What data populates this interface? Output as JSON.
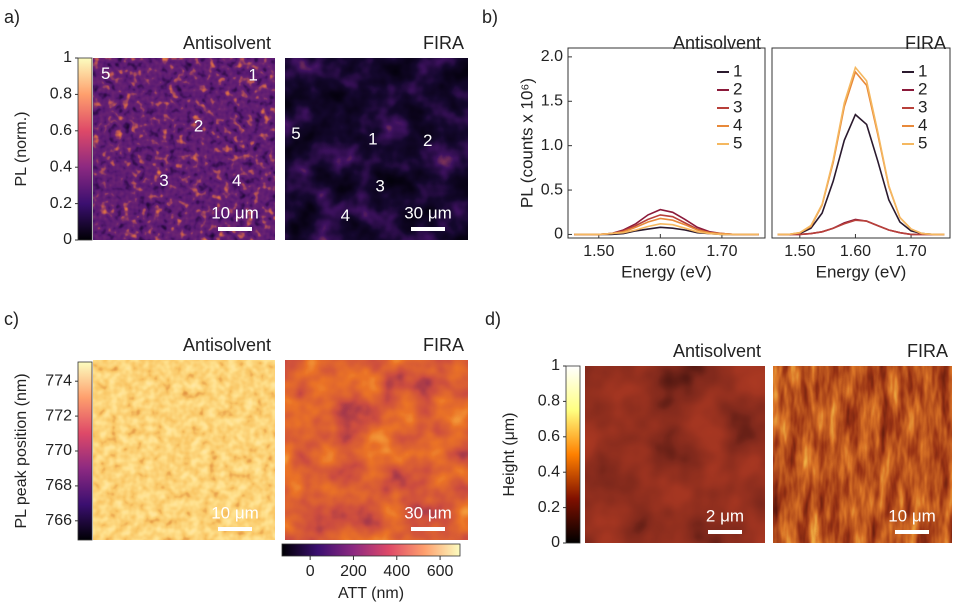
{
  "panel_labels": [
    "a)",
    "b)",
    "c)",
    "d)"
  ],
  "chart_data": [
    {
      "type": "colorbar",
      "orientation": "vertical",
      "label": "PL (norm.)",
      "ylim": [
        0,
        1
      ],
      "yticks": [
        0,
        0.2,
        0.4,
        0.6,
        0.8,
        1
      ],
      "colors": [
        "#000004",
        "#3b0f70",
        "#8c2981",
        "#de4968",
        "#fe9f6d",
        "#fcfdbf"
      ]
    },
    {
      "type": "image",
      "title": "Antisolvent",
      "scale_bar": "10 μm",
      "annotations": [
        "5",
        "1",
        "2",
        "3",
        "4"
      ]
    },
    {
      "type": "image",
      "title": "FIRA",
      "scale_bar": "30 μm",
      "annotations": [
        "5",
        "1",
        "2",
        "3",
        "4"
      ]
    },
    {
      "type": "line",
      "title": "Antisolvent",
      "xlabel": "Energy (eV)",
      "ylabel": "PL (counts  x 10⁶)",
      "legend": "upper right",
      "x": [
        1.46,
        1.48,
        1.5,
        1.52,
        1.54,
        1.56,
        1.58,
        1.6,
        1.62,
        1.64,
        1.66,
        1.68,
        1.7,
        1.72,
        1.74,
        1.76
      ],
      "xlim": [
        1.45,
        1.77
      ],
      "ylim": [
        -0.04,
        2.1
      ],
      "xticks": [
        {
          "value": 1.5,
          "label": "1.50"
        },
        {
          "value": 1.6,
          "label": "1.60"
        },
        {
          "value": 1.7,
          "label": "1.70"
        }
      ],
      "yticks": [
        0,
        0.5,
        {
          "value": 1,
          "label": "1.0"
        },
        1.5,
        {
          "value": 2,
          "label": "2.0"
        }
      ],
      "series": [
        {
          "name": "1",
          "color": "#2b1a2e",
          "values": [
            0,
            0,
            0,
            0,
            0.01,
            0.04,
            0.06,
            0.08,
            0.07,
            0.05,
            0.02,
            0.01,
            0,
            0,
            0,
            0
          ]
        },
        {
          "name": "2",
          "color": "#8b1a3a",
          "values": [
            0,
            0,
            0,
            0.01,
            0.05,
            0.12,
            0.22,
            0.28,
            0.25,
            0.17,
            0.08,
            0.03,
            0.01,
            0,
            0,
            0
          ]
        },
        {
          "name": "3",
          "color": "#b8403a",
          "values": [
            0,
            0,
            0,
            0.01,
            0.04,
            0.1,
            0.17,
            0.22,
            0.2,
            0.13,
            0.06,
            0.02,
            0.01,
            0,
            0,
            0
          ]
        },
        {
          "name": "4",
          "color": "#e8893a",
          "values": [
            0,
            0,
            0,
            0.01,
            0.03,
            0.08,
            0.14,
            0.18,
            0.16,
            0.11,
            0.05,
            0.02,
            0.01,
            0,
            0,
            0
          ]
        },
        {
          "name": "5",
          "color": "#f5b860",
          "values": [
            0,
            0,
            0,
            0.01,
            0.02,
            0.05,
            0.09,
            0.12,
            0.11,
            0.07,
            0.03,
            0.01,
            0,
            0,
            0,
            0
          ]
        }
      ]
    },
    {
      "type": "line",
      "title": "FIRA",
      "xlabel": "Energy (eV)",
      "legend": "upper right",
      "x": [
        1.46,
        1.48,
        1.5,
        1.52,
        1.54,
        1.56,
        1.58,
        1.6,
        1.62,
        1.64,
        1.66,
        1.68,
        1.7,
        1.72,
        1.74,
        1.76
      ],
      "xlim": [
        1.45,
        1.77
      ],
      "ylim": [
        -0.04,
        2.1
      ],
      "xticks": [
        {
          "value": 1.5,
          "label": "1.50"
        },
        {
          "value": 1.6,
          "label": "1.60"
        },
        {
          "value": 1.7,
          "label": "1.70"
        }
      ],
      "series": [
        {
          "name": "1",
          "color": "#2b1a2e",
          "values": [
            0,
            0,
            0.01,
            0.07,
            0.24,
            0.6,
            1.06,
            1.35,
            1.24,
            0.83,
            0.39,
            0.14,
            0.04,
            0.01,
            0,
            0
          ]
        },
        {
          "name": "2",
          "color": "#8b1a3a",
          "values": [
            0,
            0,
            0,
            0.01,
            0.03,
            0.07,
            0.13,
            0.17,
            0.15,
            0.1,
            0.05,
            0.02,
            0,
            0,
            0,
            0
          ]
        },
        {
          "name": "3",
          "color": "#b8403a",
          "values": [
            0,
            0,
            0,
            0.01,
            0.03,
            0.07,
            0.12,
            0.16,
            0.15,
            0.1,
            0.05,
            0.02,
            0,
            0,
            0,
            0
          ]
        },
        {
          "name": "4",
          "color": "#e8893a",
          "values": [
            0,
            0,
            0.02,
            0.09,
            0.33,
            0.81,
            1.44,
            1.83,
            1.68,
            1.13,
            0.54,
            0.19,
            0.06,
            0.01,
            0,
            0
          ]
        },
        {
          "name": "5",
          "color": "#f5b860",
          "values": [
            0,
            0,
            0.02,
            0.1,
            0.34,
            0.84,
            1.48,
            1.88,
            1.73,
            1.16,
            0.55,
            0.19,
            0.06,
            0.01,
            0,
            0
          ]
        }
      ]
    },
    {
      "type": "colorbar",
      "orientation": "vertical",
      "label": "PL peak position (nm)",
      "ylim": [
        764.9,
        775.1
      ],
      "yticks": [
        766,
        768,
        770,
        772,
        774
      ],
      "colors": [
        "#000004",
        "#3b0f70",
        "#8c2981",
        "#de4968",
        "#fe9f6d",
        "#fcfdbf"
      ]
    },
    {
      "type": "image",
      "title": "Antisolvent",
      "scale_bar": "10 μm"
    },
    {
      "type": "image",
      "title": "FIRA",
      "scale_bar": "30 μm"
    },
    {
      "type": "colorbar",
      "orientation": "horizontal",
      "label": "ATT (nm)",
      "xlim": [
        -130,
        692
      ],
      "xticks": [
        0,
        200,
        400,
        600
      ],
      "colors": [
        "#000004",
        "#3b0f70",
        "#8c2981",
        "#de4968",
        "#fe9f6d",
        "#fcfdbf"
      ]
    },
    {
      "type": "colorbar",
      "orientation": "vertical",
      "label": "Height (μm)",
      "ylim": [
        0,
        1
      ],
      "yticks": [
        0,
        0.2,
        0.4,
        0.6,
        0.8,
        1
      ],
      "colors": [
        "#000000",
        "#801000",
        "#ff8000",
        "#ffff80",
        "#ffffff"
      ]
    },
    {
      "type": "image",
      "title": "Antisolvent",
      "scale_bar": "2 μm"
    },
    {
      "type": "image",
      "title": "FIRA",
      "scale_bar": "10 μm"
    }
  ]
}
